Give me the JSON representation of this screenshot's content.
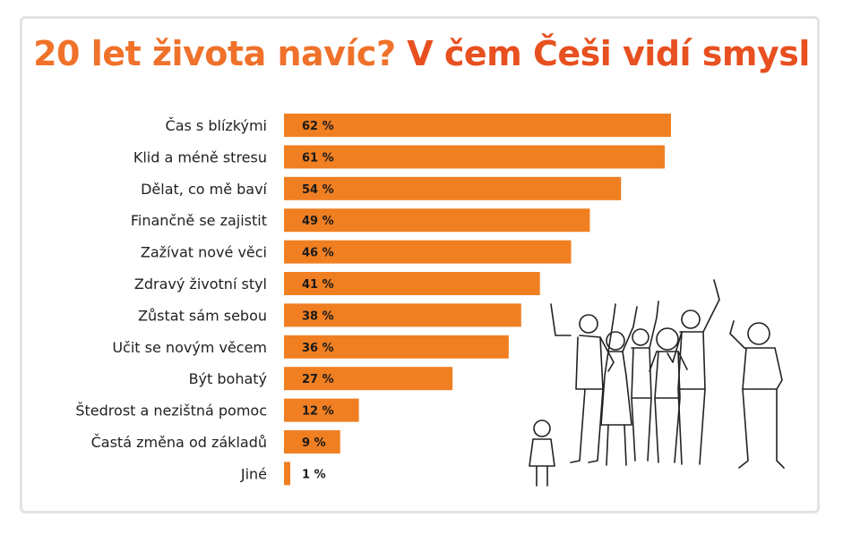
{
  "title": {
    "part1": "20 let života navíc?",
    "part2": "V čem Češi vidí smysl"
  },
  "colors": {
    "bar": "#f07f22",
    "title_orange": "#f0712a",
    "title_red_orange": "#e8501f",
    "label_text": "#222222"
  },
  "icons": [
    "people-group-illustration"
  ],
  "chart_data": {
    "type": "bar",
    "orientation": "horizontal",
    "title": "20 let života navíc? V čem Češi vidí smysl",
    "categories": [
      "Čas s blízkými",
      "Klid a méně stresu",
      "Dělat, co mě baví",
      "Finančně se zajistit",
      "Zažívat nové věci",
      "Zdravý životní styl",
      "Zůstat sám sebou",
      "Učit se novým věcem",
      "Být bohatý",
      "Štedrost a nezištná pomoc",
      "Častá změna od základů",
      "Jiné"
    ],
    "values": [
      62,
      61,
      54,
      49,
      46,
      41,
      38,
      36,
      27,
      12,
      9,
      1
    ],
    "value_labels": [
      "62 %",
      "61 %",
      "54 %",
      "49 %",
      "46 %",
      "41 %",
      "38 %",
      "36 %",
      "27 %",
      "12 %",
      "9 %",
      "1 %"
    ],
    "unit": "%",
    "xlim": [
      0,
      62
    ],
    "grid": false,
    "legend": "none"
  }
}
